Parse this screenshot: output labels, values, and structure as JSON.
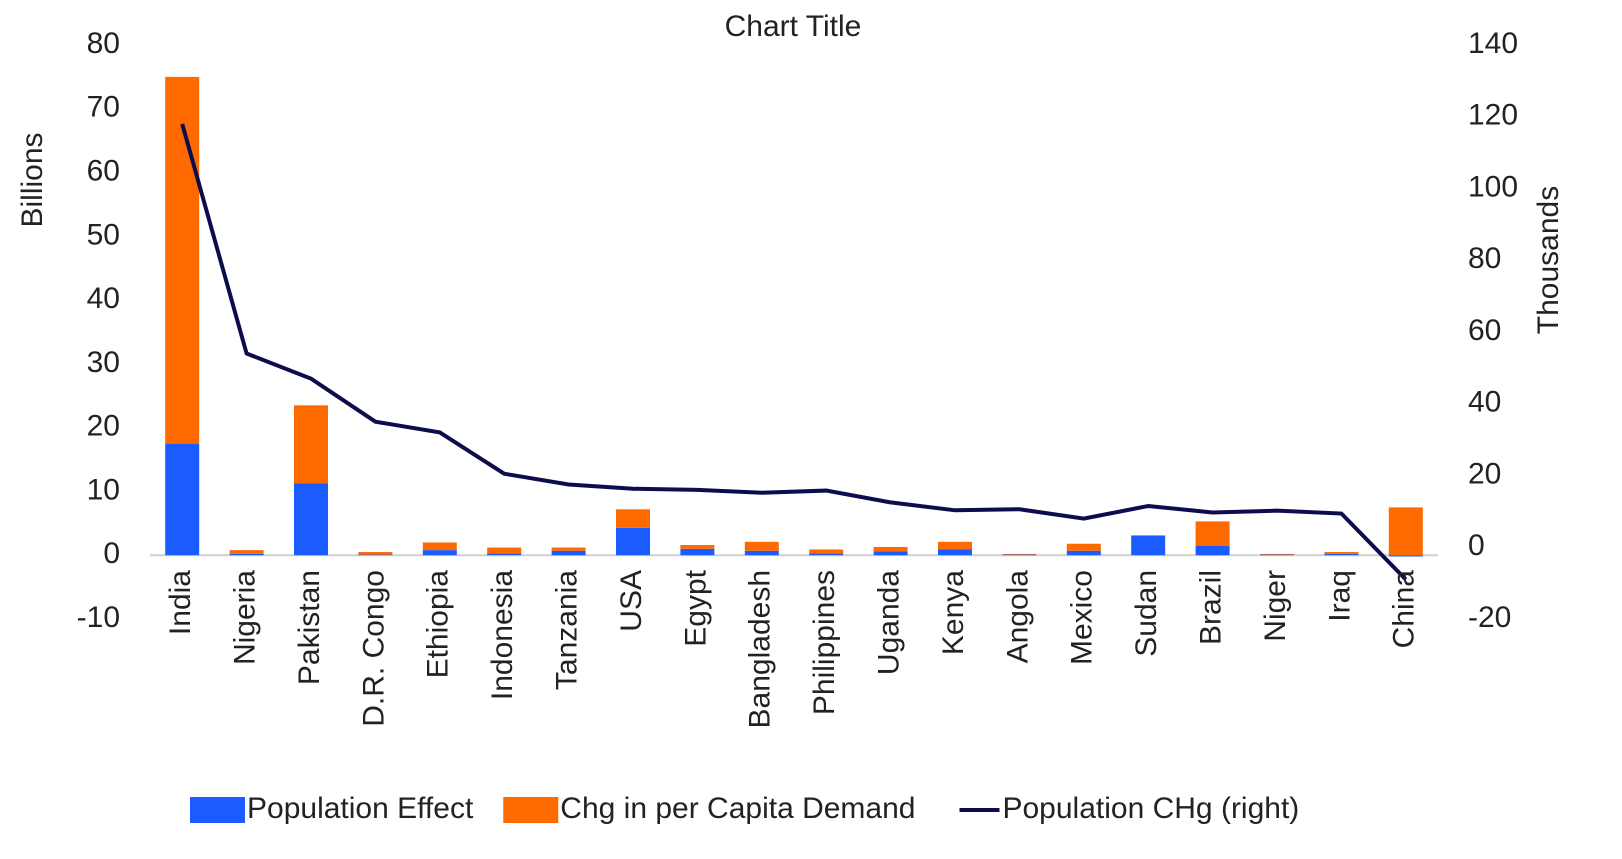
{
  "chart_data": {
    "type": "bar",
    "stacked": true,
    "title": "Chart Title",
    "y_label": "Billions",
    "y2_label": "Thousands",
    "categories": [
      "India",
      "Nigeria",
      "Pakistan",
      "D.R. Congo",
      "Ethiopia",
      "Indonesia",
      "Tanzania",
      "USA",
      "Egypt",
      "Bangladesh",
      "Philippines",
      "Uganda",
      "Kenya",
      "Angola",
      "Mexico",
      "Sudan",
      "Brazil",
      "Niger",
      "Iraq",
      "China"
    ],
    "series": [
      {
        "name": "Population Effect",
        "type": "bar",
        "color": "#1a5cff",
        "values": [
          17.5,
          0.2,
          11.3,
          0.1,
          0.8,
          0.3,
          0.7,
          4.3,
          1.0,
          0.7,
          0.3,
          0.6,
          0.9,
          0.1,
          0.7,
          3.1,
          1.5,
          0.1,
          0.2,
          -0.2
        ]
      },
      {
        "name": "Chg in per Capita Demand",
        "type": "bar",
        "color": "#ff6a00",
        "values": [
          57.5,
          0.6,
          12.2,
          0.4,
          1.2,
          0.9,
          0.5,
          2.9,
          0.6,
          1.4,
          0.6,
          0.7,
          1.2,
          0.1,
          1.1,
          0,
          3.8,
          0.1,
          0.3,
          7.5
        ]
      },
      {
        "name": "Population CHg (right)",
        "type": "line",
        "axis": "y2",
        "color": "#0d0d4d",
        "values": [
          118,
          54,
          47,
          35,
          32,
          20.5,
          17.5,
          16.3,
          16,
          15.2,
          15.8,
          12.5,
          10.3,
          10.6,
          8,
          11.5,
          9.7,
          10.2,
          9.4,
          -9
        ]
      }
    ],
    "ylim": [
      -10,
      80
    ],
    "yticks": [
      -10,
      0,
      10,
      20,
      30,
      40,
      50,
      60,
      70,
      80
    ],
    "y2lim": [
      -20,
      140
    ],
    "y2ticks": [
      -20,
      0,
      20,
      40,
      60,
      80,
      100,
      120,
      140
    ],
    "legend": "bottom"
  }
}
